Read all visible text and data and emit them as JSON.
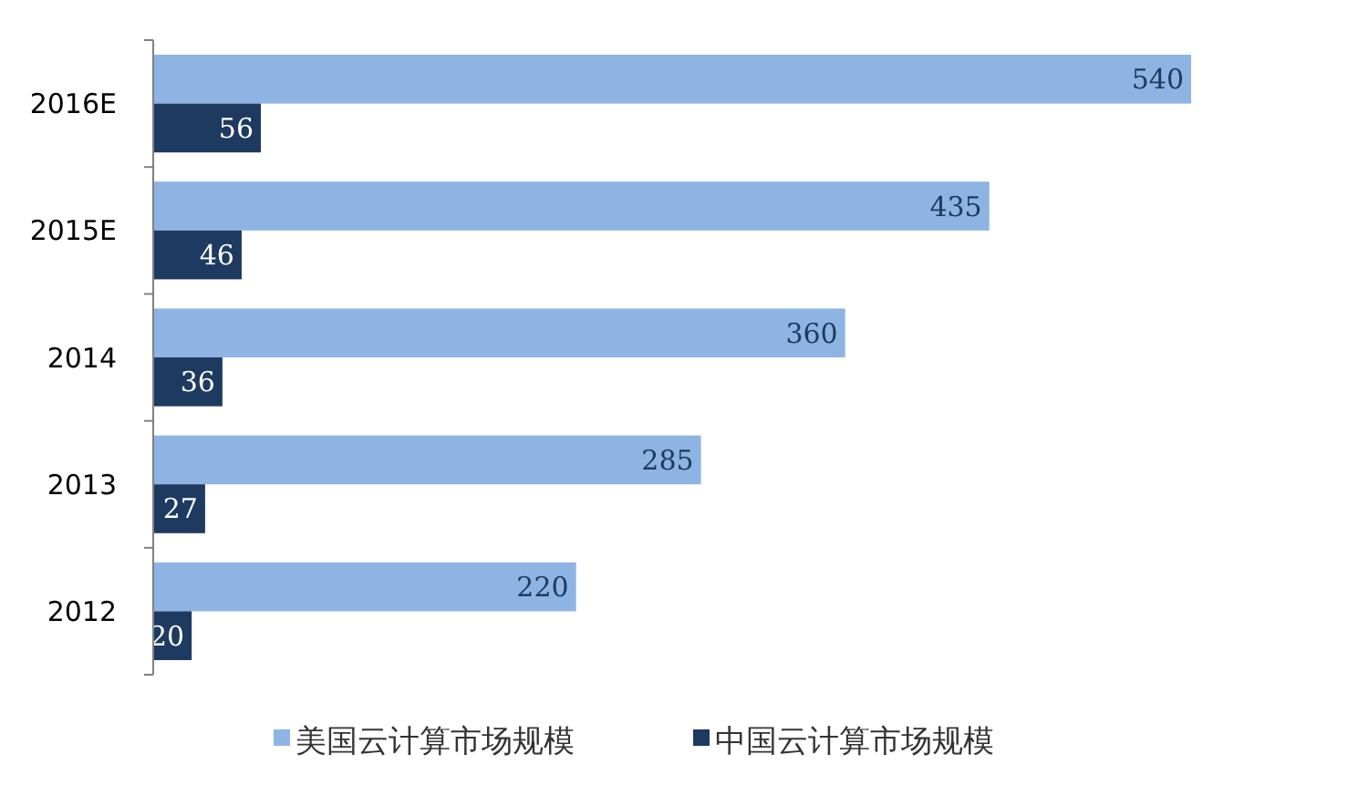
{
  "chart_data": {
    "type": "bar",
    "orientation": "horizontal",
    "categories": [
      "2016E",
      "2015E",
      "2014",
      "2013",
      "2012"
    ],
    "series": [
      {
        "name": "美国云计算市场规模",
        "color": "#8eb4e3",
        "values": [
          540,
          435,
          360,
          285,
          220
        ]
      },
      {
        "name": "中国云计算市场规模",
        "color": "#1f3a60",
        "values": [
          56,
          46,
          36,
          27,
          20
        ]
      }
    ],
    "data_labels": true,
    "legend": "bottom"
  }
}
